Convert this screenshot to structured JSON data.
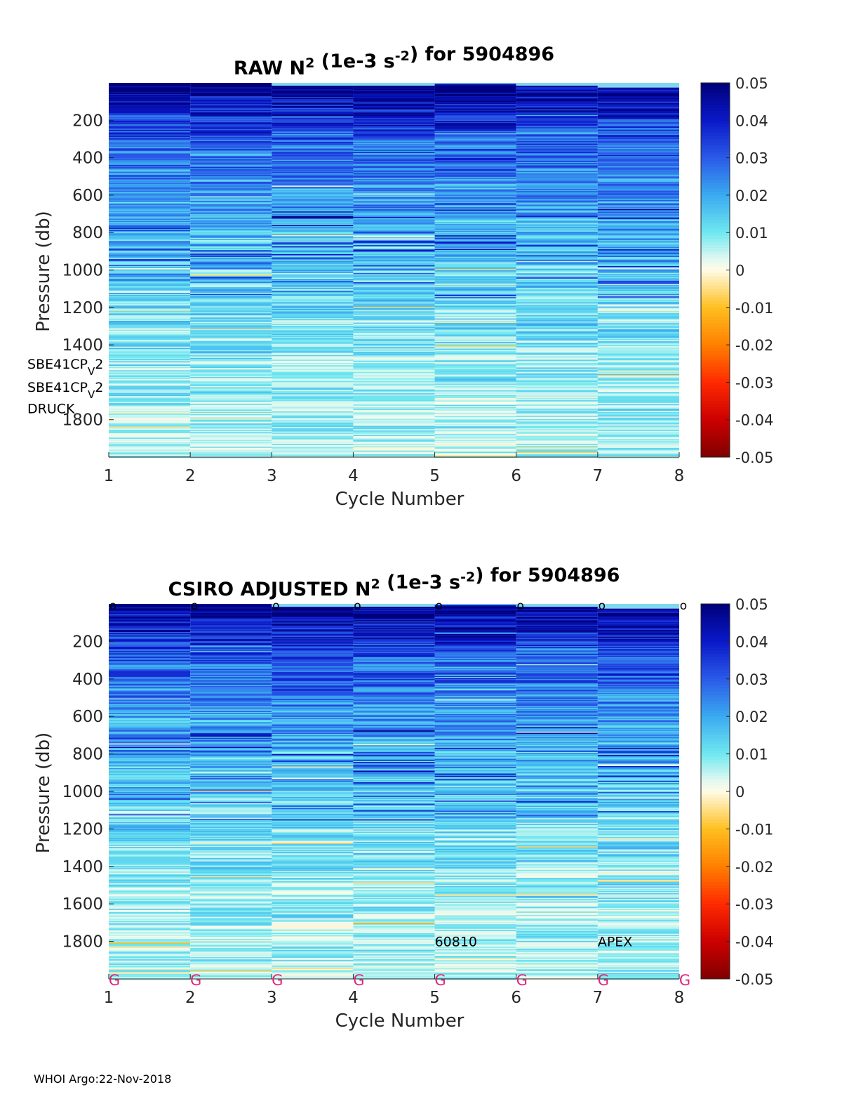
{
  "footer": "WHOI Argo:22-Nov-2018",
  "colormap": {
    "stops": [
      {
        "v": -0.05,
        "c": "#800000"
      },
      {
        "v": -0.04,
        "c": "#cc0000"
      },
      {
        "v": -0.03,
        "c": "#ff2a00"
      },
      {
        "v": -0.02,
        "c": "#ff8000"
      },
      {
        "v": -0.01,
        "c": "#ffbf20"
      },
      {
        "v": 0.0,
        "c": "#fffbe6"
      },
      {
        "v": 0.003,
        "c": "#dff8f0"
      },
      {
        "v": 0.01,
        "c": "#6fe8f0"
      },
      {
        "v": 0.02,
        "c": "#3aaaf0"
      },
      {
        "v": 0.03,
        "c": "#2a5ae8"
      },
      {
        "v": 0.04,
        "c": "#0a18c8"
      },
      {
        "v": 0.05,
        "c": "#00007a"
      }
    ]
  },
  "chart_data": [
    {
      "type": "heatmap",
      "title": "RAW N",
      "title_sup": "2",
      "title_mid": " (1e-3 s",
      "title_sup2": "-2",
      "title_end": ") for 5904896",
      "xlabel": "Cycle Number",
      "ylabel": "Pressure (db)",
      "xlim": [
        1,
        8
      ],
      "ylim": [
        0,
        2000
      ],
      "xticks": [
        "1",
        "2",
        "3",
        "4",
        "5",
        "6",
        "7",
        "8"
      ],
      "yticks": [
        {
          "value": 200,
          "label": "200"
        },
        {
          "value": 400,
          "label": "400"
        },
        {
          "value": 600,
          "label": "600"
        },
        {
          "value": 800,
          "label": "800"
        },
        {
          "value": 1000,
          "label": "1000"
        },
        {
          "value": 1200,
          "label": "1200"
        },
        {
          "value": 1400,
          "label": "1400"
        },
        {
          "value": 1800,
          "label": "1800"
        }
      ],
      "cbar_ticks": [
        "0.05",
        "0.04",
        "0.03",
        "0.02",
        "0.01",
        "0",
        "-0.01",
        "-0.02",
        "-0.03",
        "-0.04",
        "-0.05"
      ],
      "clim": [
        -0.05,
        0.05
      ],
      "profiles": [
        {
          "cycle": 1,
          "start_p": 0
        },
        {
          "cycle": 2,
          "start_p": 0
        },
        {
          "cycle": 3,
          "start_p": 15
        },
        {
          "cycle": 4,
          "start_p": 15
        },
        {
          "cycle": 5,
          "start_p": 5
        },
        {
          "cycle": 6,
          "start_p": 15
        },
        {
          "cycle": 7,
          "start_p": 25
        }
      ],
      "annotations": [
        {
          "text": "SBE41CP",
          "sub": "V",
          "tail": "2",
          "pressure": 1500
        },
        {
          "text": "SBE41CP",
          "sub": "V",
          "tail": "2",
          "pressure": 1625
        },
        {
          "text": "DRUCK",
          "pressure": 1740
        }
      ],
      "overlay_labels": []
    },
    {
      "type": "heatmap",
      "title": "CSIRO  ADJUSTED N",
      "title_sup": "2",
      "title_mid": " (1e-3 s",
      "title_sup2": "-2",
      "title_end": ") for 5904896",
      "xlabel": "Cycle Number",
      "ylabel": "Pressure (db)",
      "xlim": [
        1,
        8
      ],
      "ylim": [
        0,
        2000
      ],
      "xticks": [
        "1",
        "2",
        "3",
        "4",
        "5",
        "6",
        "7",
        "8"
      ],
      "yticks": [
        {
          "value": 200,
          "label": "200"
        },
        {
          "value": 400,
          "label": "400"
        },
        {
          "value": 600,
          "label": "600"
        },
        {
          "value": 800,
          "label": "800"
        },
        {
          "value": 1000,
          "label": "1000"
        },
        {
          "value": 1200,
          "label": "1200"
        },
        {
          "value": 1400,
          "label": "1400"
        },
        {
          "value": 1600,
          "label": "1600"
        },
        {
          "value": 1800,
          "label": "1800"
        }
      ],
      "cbar_ticks": [
        "0.05",
        "0.04",
        "0.03",
        "0.02",
        "0.01",
        "0",
        "-0.01",
        "-0.02",
        "-0.03",
        "-0.04",
        "-0.05"
      ],
      "clim": [
        -0.05,
        0.05
      ],
      "profiles": [
        {
          "cycle": 1,
          "start_p": 0
        },
        {
          "cycle": 2,
          "start_p": 0
        },
        {
          "cycle": 3,
          "start_p": 15
        },
        {
          "cycle": 4,
          "start_p": 15
        },
        {
          "cycle": 5,
          "start_p": 5
        },
        {
          "cycle": 6,
          "start_p": 15
        },
        {
          "cycle": 7,
          "start_p": 25
        }
      ],
      "top_markers": [
        "o",
        "o",
        "o",
        "o",
        "o",
        "o",
        "o",
        "o"
      ],
      "bottom_markers": [
        "G",
        "G",
        "G",
        "G",
        "G",
        "G",
        "G",
        "G"
      ],
      "annotations": [],
      "overlay_labels": [
        {
          "text": "60810",
          "cycle": 5,
          "pressure": 1800
        },
        {
          "text": "APEX",
          "cycle": 7,
          "pressure": 1800
        }
      ]
    }
  ]
}
